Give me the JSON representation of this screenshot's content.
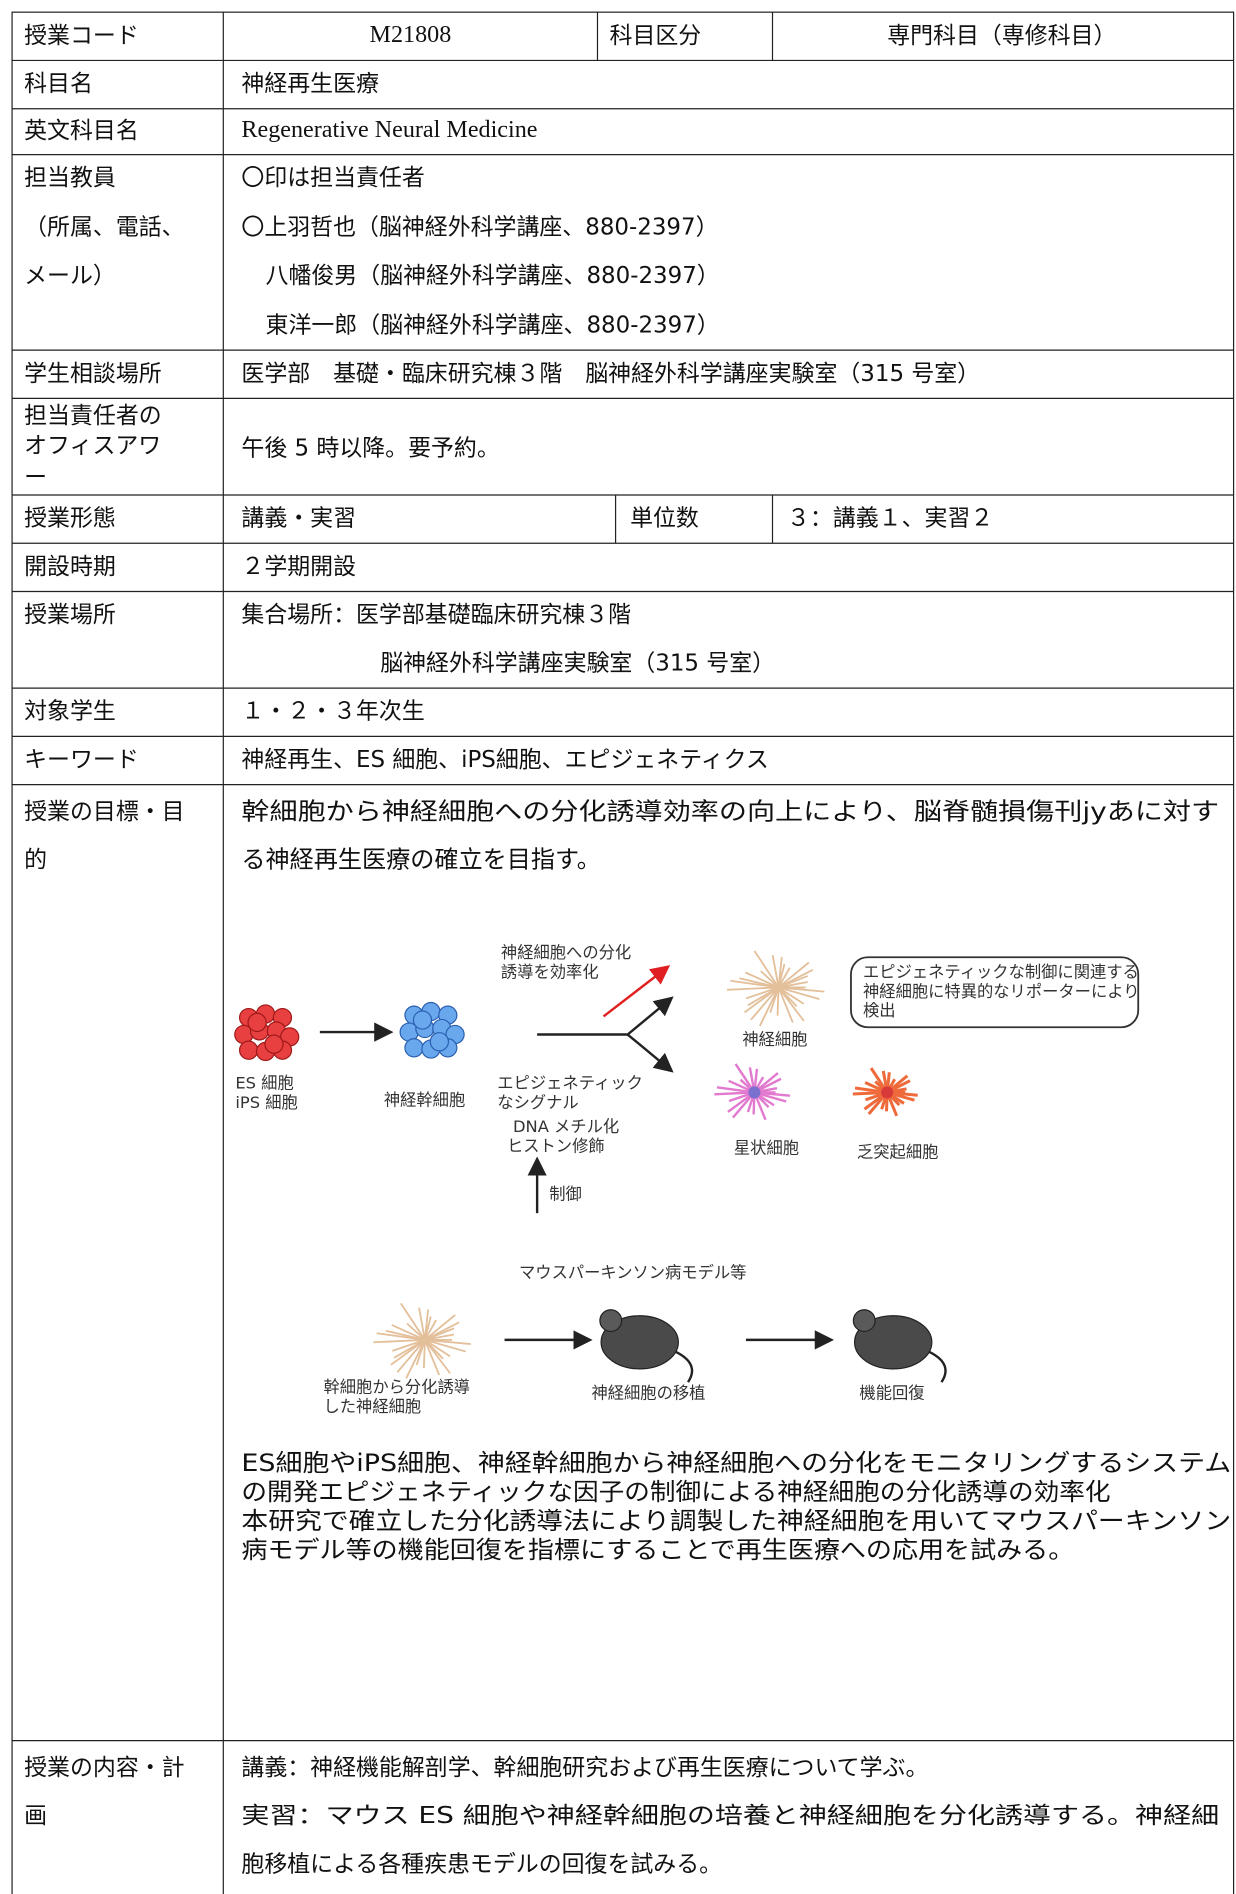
{
  "header": {
    "code_label": "授業コード",
    "code": "M21808",
    "category_label": "科目区分",
    "category": "専門科目（専修科目）"
  },
  "course_name": {
    "label": "科目名",
    "value": "神経再生医療"
  },
  "english_name": {
    "label": "英文科目名",
    "value": "Regenerative Neural Medicine"
  },
  "instructors": {
    "label": [
      "担当教員",
      "（所属、電話、",
      "メール）"
    ],
    "note": "〇印は担当責任者",
    "members": [
      "〇上羽哲也（脳神経外科学講座、880-2397）",
      "八幡俊男（脳神経外科学講座、880-2397）",
      "東洋一郎（脳神経外科学講座、880-2397）"
    ]
  },
  "consultation": {
    "label": "学生相談場所",
    "value": "医学部　基礎・臨床研究棟３階　脳神経外科学講座実験室（315 号室）"
  },
  "office_hours": {
    "label": [
      "担当責任者の",
      "オフィスアワ",
      "ー"
    ],
    "value": "午後 5 時以降。要予約。"
  },
  "format": {
    "label": "授業形態",
    "value": "講義・実習",
    "credits_label": "単位数",
    "credits": "３：講義１、実習２"
  },
  "term": {
    "label": "開設時期",
    "value": "２学期開設"
  },
  "location": {
    "label": "授業場所",
    "value": [
      "集合場所：医学部基礎臨床研究棟３階",
      "脳神経外科学講座実験室（315 号室）"
    ]
  },
  "students": {
    "label": "対象学生",
    "value": "１・２・３年次生"
  },
  "keywords": {
    "label": "キーワード",
    "value": "神経再生、ES 細胞、iPS細胞、エピジェネティクス"
  },
  "objectives": {
    "label": [
      "授業の目標・目",
      "的"
    ],
    "text": [
      "幹細胞から神経細胞への分化誘導効率の向上により、脳脊髄損傷刊jyあに対す",
      "る神経再生医療の確立を目指す。"
    ],
    "figure": {
      "efficiency": [
        "神経細胞への分化",
        "誘導を効率化"
      ],
      "es": [
        "ES 細胞",
        "iPS 細胞"
      ],
      "neural_stem": "神経幹細胞",
      "signal": [
        "エピジェネティック",
        "なシグナル",
        "DNA メチル化",
        "ヒストン修飾"
      ],
      "control": "制御",
      "neuron": "神経細胞",
      "astrocyte": "星状細胞",
      "oligodendrocyte": "乏突起細胞",
      "reporter": [
        "エピジェネティックな制御に関連する",
        "神経細胞に特異的なリポーターにより",
        "検出"
      ],
      "model": "マウスパーキンソン病モデル等",
      "derived": [
        "幹細胞から分化誘導",
        "した神経細胞"
      ],
      "transplant": "神経細胞の移植",
      "recovery": "機能回復"
    },
    "description": [
      "ES細胞やiPS細胞、神経幹細胞から神経細胞への分化をモニタリングするシステム",
      "の開発エピジェネティックな因子の制御による神経細胞の分化誘導の効率化",
      "本研究で確立した分化誘導法により調製した神経細胞を用いてマウスパーキンソン",
      "病モデル等の機能回復を指標にすることで再生医療への応用を試みる。"
    ]
  },
  "content": {
    "label": [
      "授業の内容・計",
      "画"
    ],
    "text": [
      "講義：神経機能解剖学、幹細胞研究および再生医療について学ぶ。",
      "実習：マウス ES 細胞や神経幹細胞の培養と神経細胞を分化誘導する。神経細",
      "胞移植による各種疾患モデルの回復を試みる。"
    ]
  }
}
